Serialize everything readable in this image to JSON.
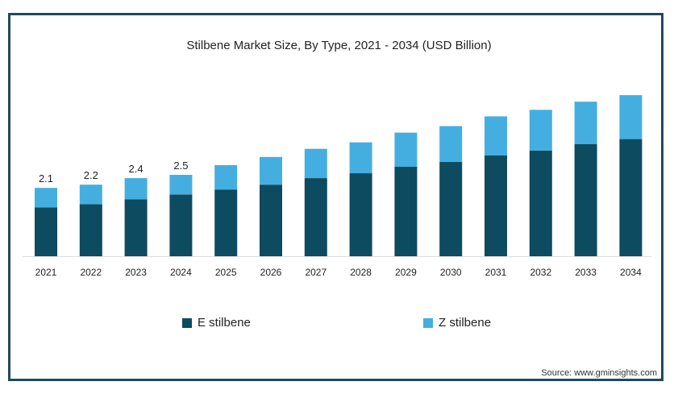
{
  "chart_data": {
    "type": "bar",
    "stacked": true,
    "title": "Stilbene Market Size, By Type, 2021 - 2034 (USD Billion)",
    "categories": [
      "2021",
      "2022",
      "2023",
      "2024",
      "2025",
      "2026",
      "2027",
      "2028",
      "2029",
      "2030",
      "2031",
      "2032",
      "2033",
      "2034"
    ],
    "series": [
      {
        "name": "E stilbene",
        "color": "#0d4b60",
        "values": [
          1.5,
          1.6,
          1.75,
          1.9,
          2.05,
          2.2,
          2.4,
          2.55,
          2.75,
          2.9,
          3.1,
          3.25,
          3.45,
          3.6
        ]
      },
      {
        "name": "Z stilbene",
        "color": "#45aee0",
        "values": [
          0.6,
          0.6,
          0.65,
          0.6,
          0.75,
          0.85,
          0.9,
          0.95,
          1.05,
          1.1,
          1.2,
          1.25,
          1.3,
          1.35
        ]
      }
    ],
    "data_labels": [
      "2.1",
      "2.2",
      "2.4",
      "2.5",
      "",
      "",
      "",
      "",
      "",
      "",
      "",
      "",
      "",
      ""
    ],
    "ylim": [
      0,
      5.25
    ],
    "grid": false,
    "legend_position": "bottom"
  },
  "source": "Source: www.gminsights.com"
}
